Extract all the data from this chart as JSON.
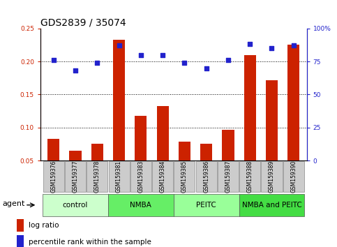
{
  "title": "GDS2839 / 35074",
  "samples": [
    "GSM159376",
    "GSM159377",
    "GSM159378",
    "GSM159381",
    "GSM159383",
    "GSM159384",
    "GSM159385",
    "GSM159386",
    "GSM159387",
    "GSM159388",
    "GSM159389",
    "GSM159390"
  ],
  "log_ratio": [
    0.083,
    0.065,
    0.075,
    0.233,
    0.118,
    0.132,
    0.079,
    0.075,
    0.097,
    0.21,
    0.172,
    0.225
  ],
  "percentile_rank_pct": [
    76,
    68,
    74,
    87,
    80,
    80,
    74,
    70,
    76,
    88,
    85,
    87
  ],
  "bar_color": "#cc2200",
  "dot_color": "#2222cc",
  "ylim_left": [
    0.05,
    0.25
  ],
  "ylim_right": [
    0,
    100
  ],
  "yticks_left": [
    0.05,
    0.1,
    0.15,
    0.2,
    0.25
  ],
  "yticks_right": [
    0,
    25,
    50,
    75,
    100
  ],
  "yticks_right_labels": [
    "0",
    "25",
    "50",
    "75",
    "100%"
  ],
  "groups": [
    {
      "label": "control",
      "start": 0,
      "end": 3,
      "color": "#ccffcc"
    },
    {
      "label": "NMBA",
      "start": 3,
      "end": 6,
      "color": "#66ee66"
    },
    {
      "label": "PEITC",
      "start": 6,
      "end": 9,
      "color": "#99ff99"
    },
    {
      "label": "NMBA and PEITC",
      "start": 9,
      "end": 12,
      "color": "#44dd44"
    }
  ],
  "agent_label": "agent",
  "legend_bar_label": "log ratio",
  "legend_dot_label": "percentile rank within the sample",
  "title_fontsize": 10,
  "tick_fontsize": 6.5,
  "label_fontsize": 8,
  "group_fontsize": 7.5,
  "sample_fontsize": 5.5,
  "background_color": "#ffffff",
  "grid_color": "#000000",
  "gridlines": [
    0.1,
    0.15,
    0.2
  ]
}
